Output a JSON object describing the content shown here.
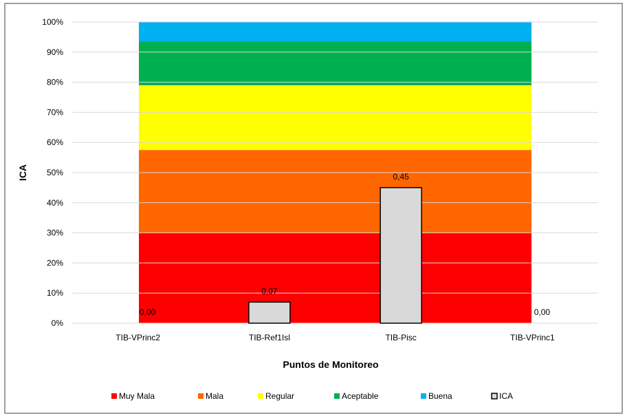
{
  "chart_data": {
    "type": "bar",
    "xlabel": "Puntos de Monitoreo",
    "ylabel": "ICA",
    "ylim": [
      0,
      1
    ],
    "yticks": [
      "0%",
      "10%",
      "20%",
      "30%",
      "40%",
      "50%",
      "60%",
      "70%",
      "80%",
      "90%",
      "100%"
    ],
    "categories": [
      "TIB-VPrinc2",
      "TIB-Ref1Isl",
      "TIB-Pisc",
      "TIB-VPrinc1"
    ],
    "bands": [
      {
        "name": "Muy Mala",
        "from": 0.0,
        "to": 0.3,
        "color": "#ff0000"
      },
      {
        "name": "Mala",
        "from": 0.3,
        "to": 0.575,
        "color": "#ff6600"
      },
      {
        "name": "Regular",
        "from": 0.575,
        "to": 0.79,
        "color": "#ffff00"
      },
      {
        "name": "Aceptable",
        "from": 0.79,
        "to": 0.935,
        "color": "#00b050"
      },
      {
        "name": "Buena",
        "from": 0.935,
        "to": 1.0,
        "color": "#00b0f0"
      }
    ],
    "series": [
      {
        "name": "ICA",
        "color": "#d9d9d9",
        "values": [
          0.0,
          0.07,
          0.45,
          0.0
        ],
        "labels": [
          "0,00",
          "0,07",
          "0,45",
          "0,00"
        ]
      }
    ],
    "grid": true,
    "legend_position": "bottom"
  }
}
